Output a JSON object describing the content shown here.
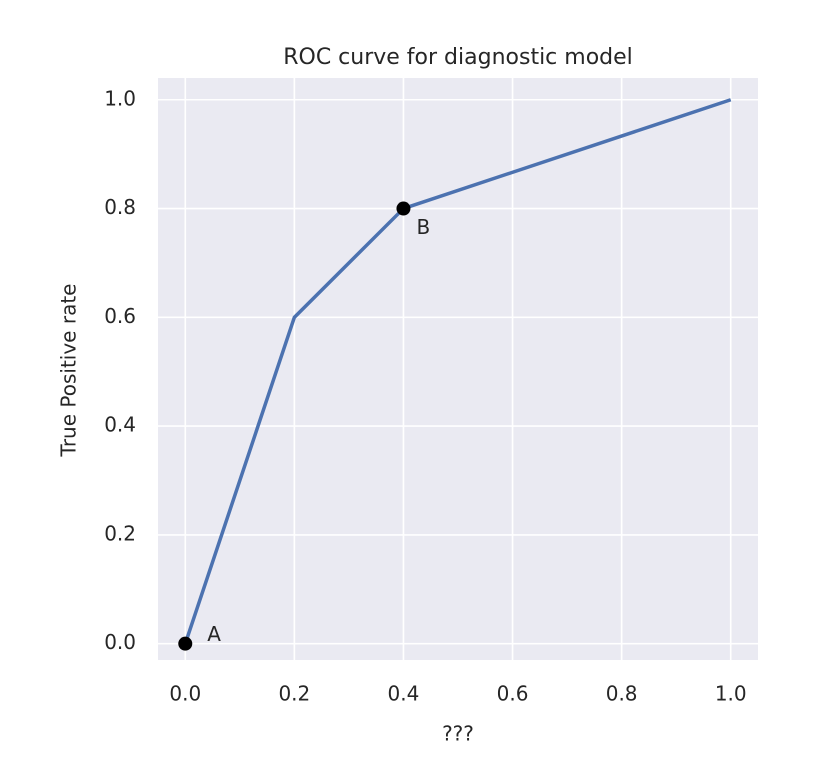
{
  "chart_data": {
    "type": "line",
    "title": "ROC curve for diagnostic model",
    "x_label": "???",
    "y_label": "True Positive rate",
    "x": [
      0,
      0.2,
      0.4,
      1.0
    ],
    "series": [
      {
        "color": "#4c72b0",
        "values": [
          0,
          0.6,
          0.8,
          1.0
        ]
      }
    ],
    "points": [
      {
        "label": "A",
        "x": 0,
        "y": 0
      },
      {
        "label": "B",
        "x": 0.4,
        "y": 0.8
      }
    ],
    "point_color": "#000000",
    "xlim": [
      -0.05,
      1.05
    ],
    "ylim": [
      -0.03,
      1.04
    ],
    "xticks": [
      {
        "value": 0,
        "label": "0.0"
      },
      0.2,
      0.4,
      0.6,
      0.8,
      {
        "value": 1,
        "label": "1.0"
      }
    ],
    "yticks": [
      {
        "value": 0,
        "label": "0.0"
      },
      0.2,
      0.4,
      0.6,
      0.8,
      {
        "value": 1,
        "label": "1.0"
      }
    ],
    "grid": true,
    "background": "#eaeaf2"
  }
}
